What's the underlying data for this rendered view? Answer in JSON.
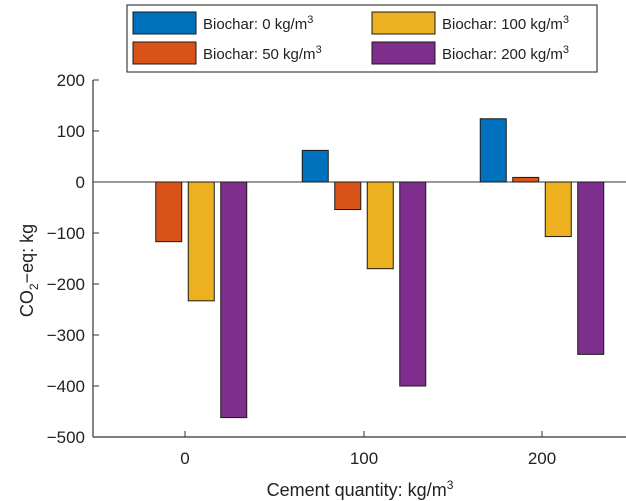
{
  "chart_data": {
    "type": "bar",
    "categories": [
      "0",
      "100",
      "200"
    ],
    "series": [
      {
        "name": "Biochar: 0 kg/m3",
        "name_base": "Biochar: 0 kg/m",
        "name_sup": "3",
        "values": [
          0,
          62,
          124
        ],
        "color": "#0072BD"
      },
      {
        "name": "Biochar: 50 kg/m3",
        "name_base": "Biochar: 50 kg/m",
        "name_sup": "3",
        "values": [
          -117,
          -54,
          9
        ],
        "color": "#D95319"
      },
      {
        "name": "Biochar: 100 kg/m3",
        "name_base": "Biochar: 100 kg/m",
        "name_sup": "3",
        "values": [
          -233,
          -170,
          -107
        ],
        "color": "#EDB120"
      },
      {
        "name": "Biochar: 200 kg/m3",
        "name_base": "Biochar: 200 kg/m",
        "name_sup": "3",
        "values": [
          -462,
          -400,
          -338
        ],
        "color": "#7E2F8E"
      }
    ],
    "xlabel": "Cement quantity: kg/m3",
    "xlabel_base": "Cement quantity: kg/m",
    "xlabel_sup": "3",
    "ylabel": "CO2−eq: kg",
    "ylabel_pre": "CO",
    "ylabel_sub": "2",
    "ylabel_post": "−eq: kg",
    "ylim": [
      -500,
      200
    ],
    "yticks": [
      200,
      100,
      0,
      -100,
      -200,
      -300,
      -400,
      -500
    ],
    "ytick_labels": [
      "200",
      "100",
      "0",
      "−100",
      "−200",
      "−300",
      "−400",
      "−500"
    ],
    "grid": false,
    "legend_position": "top"
  }
}
